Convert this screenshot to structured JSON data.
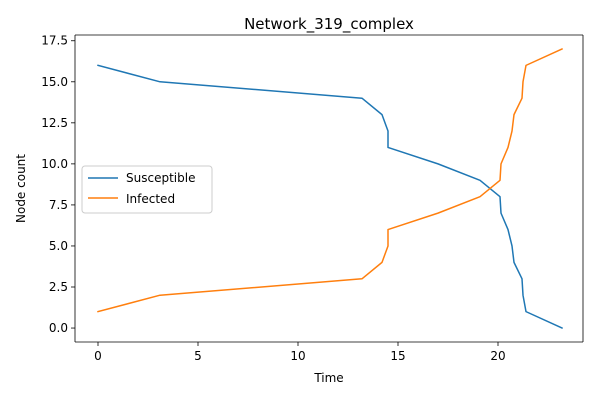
{
  "chart_data": {
    "type": "line",
    "title": "Network_319_complex",
    "xlabel": "Time",
    "ylabel": "Node count",
    "xlim": [
      -1.15,
      24.25
    ],
    "ylim": [
      -0.85,
      17.85
    ],
    "xticks": [
      0,
      5,
      10,
      15,
      20
    ],
    "xtick_labels": [
      "0",
      "5",
      "10",
      "15",
      "20"
    ],
    "yticks": [
      0,
      2.5,
      5,
      7.5,
      10,
      12.5,
      15,
      17.5
    ],
    "ytick_labels": [
      "0.0",
      "2.5",
      "5.0",
      "7.5",
      "10.0",
      "12.5",
      "15.0",
      "17.5"
    ],
    "grid": false,
    "legend_position": "center-left",
    "series": [
      {
        "name": "Susceptible",
        "color": "#1f77b4",
        "x": [
          0,
          3.1,
          13.2,
          14.2,
          14.5,
          14.5,
          17.0,
          19.1,
          20.1,
          20.15,
          20.5,
          20.7,
          20.8,
          21.2,
          21.25,
          21.4,
          23.2
        ],
        "y": [
          16,
          15,
          14,
          13,
          12,
          11,
          10,
          9,
          8,
          7,
          6,
          5,
          4,
          3,
          2,
          1,
          0
        ]
      },
      {
        "name": "Infected",
        "color": "#ff7f0e",
        "x": [
          0,
          3.1,
          13.2,
          14.2,
          14.5,
          14.5,
          17.0,
          19.1,
          20.1,
          20.15,
          20.5,
          20.7,
          20.8,
          21.2,
          21.25,
          21.4,
          23.2
        ],
        "y": [
          1,
          2,
          3,
          4,
          5,
          6,
          7,
          8,
          9,
          10,
          11,
          12,
          13,
          14,
          15,
          16,
          17
        ]
      }
    ]
  }
}
